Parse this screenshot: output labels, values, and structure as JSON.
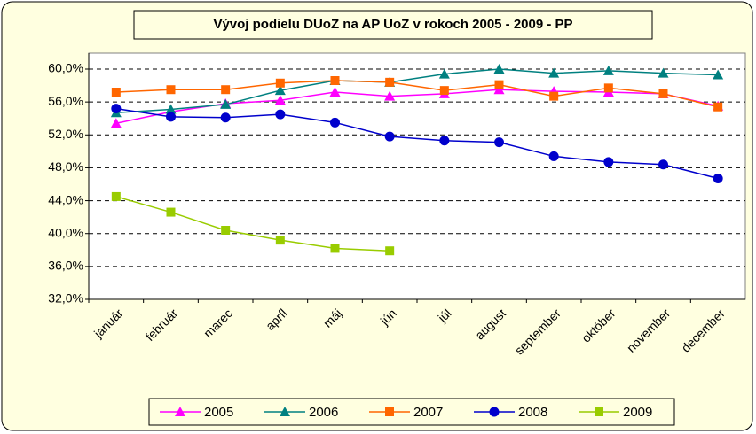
{
  "chart_data": {
    "type": "line",
    "title": "Vývoj podielu DUoZ na AP UoZ v rokoch 2005 - 2009    - PP",
    "categories": [
      "január",
      "február",
      "marec",
      "apríl",
      "máj",
      "jún",
      "júl",
      "august",
      "september",
      "október",
      "november",
      "december"
    ],
    "series": [
      {
        "name": "2005",
        "color": "#FF00FF",
        "marker": "triangle",
        "values": [
          53.4,
          54.8,
          55.8,
          56.2,
          57.2,
          56.7,
          57.0,
          57.5,
          57.3,
          57.2,
          57.0,
          55.5
        ]
      },
      {
        "name": "2006",
        "color": "#008080",
        "marker": "triangle",
        "values": [
          54.7,
          55.1,
          55.7,
          57.4,
          58.6,
          58.4,
          59.4,
          60.0,
          59.5,
          59.8,
          59.5,
          59.3
        ]
      },
      {
        "name": "2007",
        "color": "#FF6600",
        "marker": "square",
        "values": [
          57.2,
          57.5,
          57.5,
          58.3,
          58.6,
          58.4,
          57.4,
          58.1,
          56.7,
          57.7,
          57.0,
          55.4
        ]
      },
      {
        "name": "2008",
        "color": "#0000CC",
        "marker": "circle",
        "values": [
          55.2,
          54.2,
          54.1,
          54.5,
          53.5,
          51.8,
          51.3,
          51.1,
          49.4,
          48.7,
          48.4,
          46.7
        ]
      },
      {
        "name": "2009",
        "color": "#99CC00",
        "marker": "square",
        "values": [
          44.5,
          42.6,
          40.4,
          39.2,
          38.2,
          37.9,
          null,
          null,
          null,
          null,
          null,
          null
        ]
      }
    ],
    "ylim": [
      32,
      60
    ],
    "yticks": [
      {
        "value": 32,
        "label": "32,0%"
      },
      {
        "value": 36,
        "label": "36,0%"
      },
      {
        "value": 40,
        "label": "40,0%"
      },
      {
        "value": 44,
        "label": "44,0%"
      },
      {
        "value": 48,
        "label": "48,0%"
      },
      {
        "value": 52,
        "label": "52,0%"
      },
      {
        "value": 56,
        "label": "56,0%"
      },
      {
        "value": 60,
        "label": "60,0%"
      }
    ],
    "grid": true,
    "legend": "bottom"
  }
}
